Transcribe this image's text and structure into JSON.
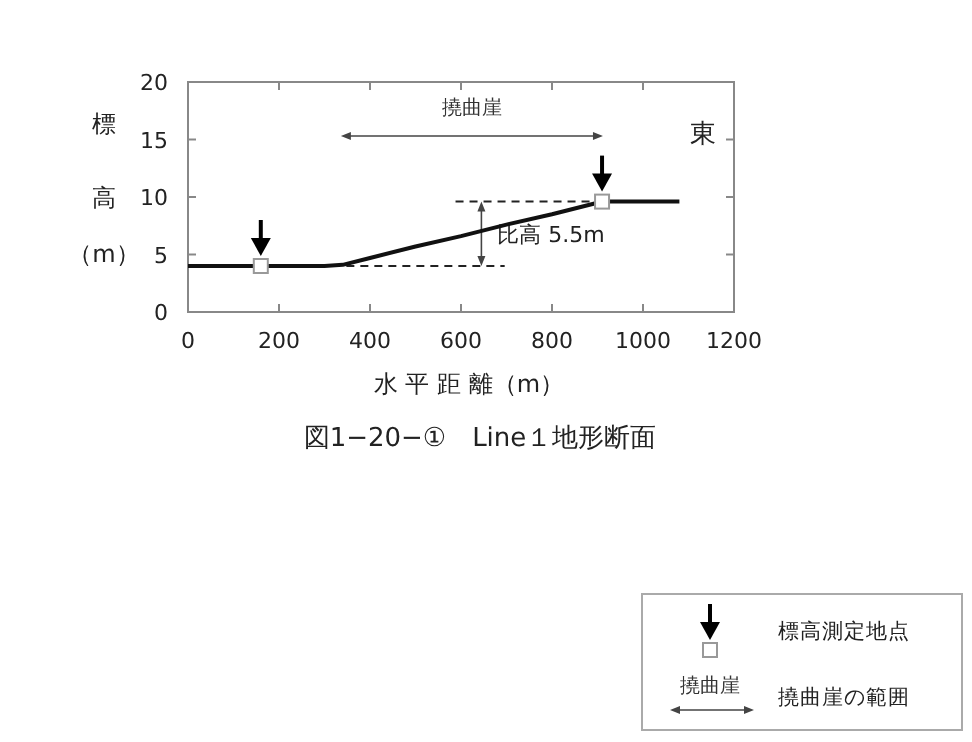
{
  "chart_data": {
    "type": "line",
    "xlabel": "水 平 距 離（m）",
    "ylabel": "標高（m）",
    "xlim": [
      0,
      1200
    ],
    "xticks": [
      0,
      200,
      400,
      600,
      800,
      1000,
      1200
    ],
    "ylim": [
      0,
      20
    ],
    "yticks": [
      0,
      5,
      10,
      15,
      20
    ],
    "grid": false,
    "legend": "bottom right",
    "series": [
      {
        "color": "#111111",
        "marker": "none",
        "line_style": "solid",
        "x": [
          0,
          150,
          300,
          340,
          400,
          500,
          600,
          700,
          800,
          900,
          920,
          1000,
          1080
        ],
        "values": [
          4,
          4,
          4,
          4.1,
          4.7,
          5.7,
          6.6,
          7.6,
          8.5,
          9.5,
          9.6,
          9.6,
          9.6
        ]
      },
      {
        "type": "scatter",
        "name": "標高測定地点",
        "color": "#999999",
        "marker": "square",
        "x": [
          160,
          910
        ],
        "values": [
          4,
          9.6
        ]
      }
    ],
    "annotations": [
      "撓曲崖",
      {
        "text": "比高 5.5m",
        "x": 680,
        "y": 6.8
      },
      "東",
      "図1−20−①　Line１地形断面",
      "撓曲崖の範囲"
    ]
  }
}
